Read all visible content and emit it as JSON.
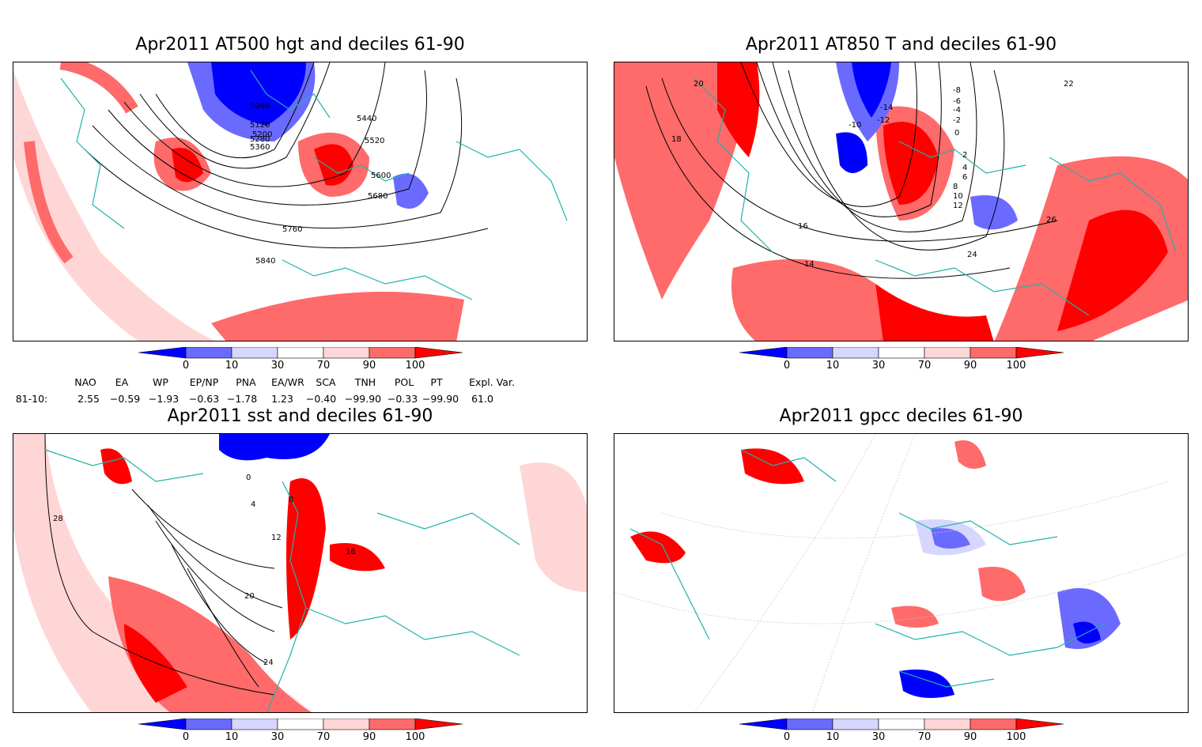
{
  "panels": [
    {
      "title": "Apr2011 AT500 hgt and deciles 61-90",
      "contour_labels": [
        "5040",
        "5120",
        "5200",
        "5280",
        "5360",
        "5440",
        "5520",
        "5600",
        "5680",
        "5760",
        "5840"
      ]
    },
    {
      "title": "Apr2011 AT850 T and deciles 61-90",
      "contour_labels": [
        "-10",
        "-12",
        "-14",
        "-8",
        "-6",
        "-4",
        "-2",
        "0",
        "2",
        "4",
        "6",
        "8",
        "10",
        "12",
        "14",
        "16",
        "18",
        "20",
        "22",
        "24",
        "26"
      ]
    },
    {
      "title": "Apr2011 sst and deciles 61-90",
      "contour_labels": [
        "0",
        "4",
        "8",
        "12",
        "16",
        "20",
        "24",
        "28"
      ]
    },
    {
      "title": "Apr2011 gpcc deciles 61-90",
      "contour_labels": []
    }
  ],
  "colorbar": {
    "ticks": [
      "0",
      "10",
      "30",
      "70",
      "90",
      "100"
    ],
    "colors": [
      "#0000ff",
      "#6a6aff",
      "#d6d6ff",
      "#ffffff",
      "#ffd6d6",
      "#ff6a6a",
      "#ff0000"
    ]
  },
  "indices": {
    "headers": [
      "NAO",
      "EA",
      "WP",
      "EP/NP",
      "PNA",
      "EA/WR",
      "SCA",
      "TNH",
      "POL",
      "PT",
      "Expl. Var."
    ],
    "row_label": "81-10:",
    "values": [
      "2.55",
      "−0.59",
      "−1.93",
      "−0.63",
      "−1.78",
      "1.23",
      "−0.40",
      "−99.90",
      "−0.33",
      "−99.90",
      "61.0"
    ]
  },
  "colors": {
    "coast": "#20b2aa",
    "contour": "#000000",
    "red_strong": "#ff0000",
    "red_mid": "#ff6a6a",
    "red_light": "#ffd6d6",
    "blue_strong": "#0000ff",
    "blue_mid": "#6a6aff",
    "blue_light": "#d6d6ff"
  }
}
